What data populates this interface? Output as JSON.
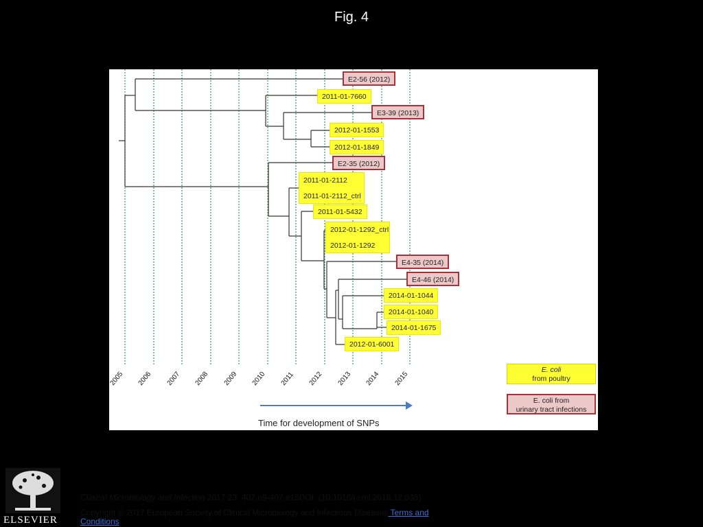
{
  "figure": {
    "title": "Fig. 4"
  },
  "tree": {
    "labels": [
      {
        "text": "E2-56 (2012)",
        "source": "urinary"
      },
      {
        "text": "2011-01-7660",
        "source": "poultry"
      },
      {
        "text": "E3-39 (2013)",
        "source": "urinary"
      },
      {
        "text": "2012-01-1553",
        "source": "poultry"
      },
      {
        "text": "2012-01-1849",
        "source": "poultry"
      },
      {
        "text": "E2-35 (2012)",
        "source": "urinary"
      },
      {
        "text": "2011-01-2112",
        "source": "poultry"
      },
      {
        "text": "2011-01-2112_ctrl",
        "source": "poultry"
      },
      {
        "text": "2011-01-5432",
        "source": "poultry"
      },
      {
        "text": "2012-01-1292_ctrl",
        "source": "poultry"
      },
      {
        "text": "2012-01-1292",
        "source": "poultry"
      },
      {
        "text": "E4-35 (2014)",
        "source": "urinary"
      },
      {
        "text": "E4-46 (2014)",
        "source": "urinary"
      },
      {
        "text": "2014-01-1044",
        "source": "poultry"
      },
      {
        "text": "2014-01-1040",
        "source": "poultry"
      },
      {
        "text": "2014-01-1675",
        "source": "poultry"
      },
      {
        "text": "2012-01-6001",
        "source": "poultry"
      }
    ],
    "years": [
      "2005",
      "2006",
      "2007",
      "2008",
      "2009",
      "2010",
      "2011",
      "2012",
      "2013",
      "2014",
      "2015"
    ],
    "axis_caption": "Time for development of SNPs"
  },
  "legend": {
    "poultry": {
      "line1": "E. coli",
      "line2": "from poultry"
    },
    "urinary": {
      "line1": "E. coli  from",
      "line2": "urinary tract infections"
    }
  },
  "colors": {
    "poultry_fill": "#ffff33",
    "urinary_fill": "#ecc8c8",
    "urinary_border": "#a53238",
    "gridline": "#2e9e5b",
    "arrow": "#4a7ec4"
  },
  "footer": {
    "journal": "Clinical Microbiology and Infection",
    "citation": " 2017 23, 407.e9-407.e15DOI: (10.1016/j.cmi.2016.12.035)",
    "copyright": "Copyright © 2017 European Society of Clinical Microbiology and Infectious Diseases",
    "link_label": " Terms and Conditions",
    "publisher": "ELSEVIER"
  }
}
